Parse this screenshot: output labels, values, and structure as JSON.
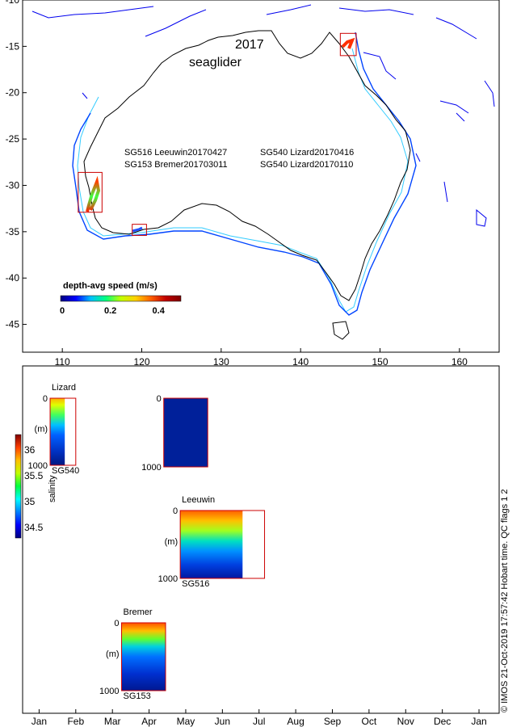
{
  "chart_data": [
    {
      "type": "map",
      "title": "2017",
      "subtitle": "seaglider",
      "xlim": [
        105,
        165
      ],
      "ylim": [
        -48,
        -10
      ],
      "xticks": [
        110,
        120,
        130,
        140,
        150,
        160
      ],
      "yticks": [
        -10,
        -15,
        -20,
        -25,
        -30,
        -35,
        -40,
        -45
      ],
      "legend_entries": [
        "SG516 Leeuwin20170427",
        "SG153 Bremer201703011",
        "SG540 Lizard20170416",
        "SG540 Lizard20170110"
      ],
      "colorbar": {
        "label": "depth-avg speed (m/s)",
        "ticks": [
          0,
          0.2,
          0.4
        ],
        "range": [
          0,
          0.5
        ],
        "colors": [
          "#00007f",
          "#0000ff",
          "#00bfff",
          "#00ff80",
          "#c0ff00",
          "#ffd000",
          "#ff6000",
          "#c00000",
          "#7f0000"
        ]
      },
      "deployment_boxes": [
        {
          "name": "Lizard",
          "lon": [
            145.0,
            147.0
          ],
          "lat": [
            -16.0,
            -13.6
          ]
        },
        {
          "name": "Leeuwin",
          "lon": [
            112.0,
            115.0
          ],
          "lat": [
            -32.9,
            -28.6
          ]
        },
        {
          "name": "Bremer",
          "lon": [
            118.8,
            120.6
          ],
          "lat": [
            -35.4,
            -34.2
          ]
        }
      ]
    },
    {
      "type": "heatmap",
      "x_ticklabels": [
        "Jan",
        "Feb",
        "Mar",
        "Apr",
        "May",
        "Jun",
        "Jul",
        "Aug",
        "Sep",
        "Oct",
        "Nov",
        "Dec",
        "Jan"
      ],
      "colorbar": {
        "label": "salinity",
        "ticks": [
          34.5,
          35,
          35.5,
          36
        ],
        "range": [
          34.3,
          36.3
        ],
        "colors": [
          "#00007f",
          "#0000ff",
          "#0080ff",
          "#00ffff",
          "#00ff40",
          "#c0ff00",
          "#ffc000",
          "#ff4000",
          "#800000"
        ]
      },
      "depth_label": "(m)",
      "depth_ticks": [
        "0",
        "1000"
      ],
      "panels": [
        {
          "name": "Lizard",
          "glider": "SG540",
          "start_month": 1.3,
          "data_end_month": 1.7,
          "box_end_month": 2.0,
          "band_profile": "tropical"
        },
        {
          "name": "",
          "glider": "",
          "start_month": 4.4,
          "data_end_month": 5.6,
          "box_end_month": 5.6,
          "band_profile": "uniform"
        },
        {
          "name": "Leeuwin",
          "glider": "SG516",
          "start_month": 4.85,
          "data_end_month": 6.55,
          "box_end_month": 7.15,
          "band_profile": "leeuwin"
        },
        {
          "name": "Bremer",
          "glider": "SG153",
          "start_month": 3.25,
          "data_end_month": 4.45,
          "box_end_month": 4.45,
          "band_profile": "bremer"
        }
      ]
    }
  ],
  "footer": {
    "credit": "© IMOS 21-Oct-2019 17:57:42 Hobart time. QC flags 1 2"
  }
}
